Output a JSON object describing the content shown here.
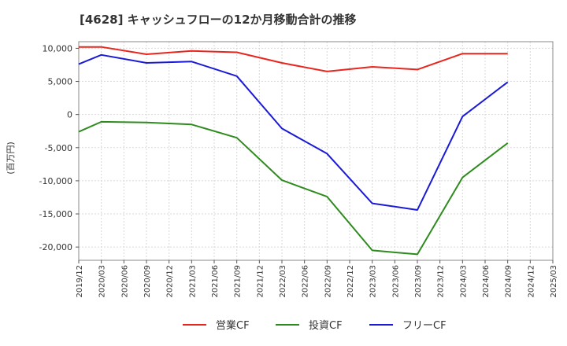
{
  "chart_data": {
    "type": "line",
    "title": "[4628]  キャッシュフローの12か月移動合計の推移",
    "ylabel": "(百万円)",
    "xlabel": "",
    "ylim": [
      -22000,
      11000
    ],
    "yticks": [
      10000,
      5000,
      0,
      -5000,
      -10000,
      -15000,
      -20000
    ],
    "ytick_labels": [
      "10,000",
      "5,000",
      "0",
      "-5,000",
      "-10,000",
      "-15,000",
      "-20,000"
    ],
    "categories": [
      "2019/12",
      "2020/03",
      "2020/06",
      "2020/09",
      "2020/12",
      "2021/03",
      "2021/06",
      "2021/09",
      "2021/12",
      "2022/03",
      "2022/06",
      "2022/09",
      "2022/12",
      "2023/03",
      "2023/06",
      "2023/09",
      "2023/12",
      "2024/03",
      "2024/06",
      "2024/09",
      "2024/12",
      "2025/03"
    ],
    "series": [
      {
        "name": "営業CF",
        "color": "#e8261e",
        "values": [
          10200,
          10200,
          null,
          9100,
          null,
          9600,
          null,
          9400,
          null,
          7800,
          null,
          6500,
          null,
          7200,
          null,
          6800,
          null,
          9200,
          null,
          9200,
          null,
          null
        ]
      },
      {
        "name": "投資CF",
        "color": "#2e8b1e",
        "values": [
          -2600,
          -1100,
          null,
          -1200,
          null,
          -1500,
          null,
          -3500,
          null,
          -9900,
          null,
          -12400,
          null,
          -20500,
          null,
          -21100,
          null,
          -9500,
          null,
          -4300,
          null,
          null
        ]
      },
      {
        "name": "フリーCF",
        "color": "#1a1ad6",
        "values": [
          7600,
          9000,
          null,
          7800,
          null,
          8000,
          null,
          5800,
          null,
          -2100,
          null,
          -5900,
          null,
          -13400,
          null,
          -14400,
          null,
          -300,
          null,
          4900,
          null,
          null
        ]
      }
    ],
    "grid": true,
    "legend_position": "bottom"
  }
}
